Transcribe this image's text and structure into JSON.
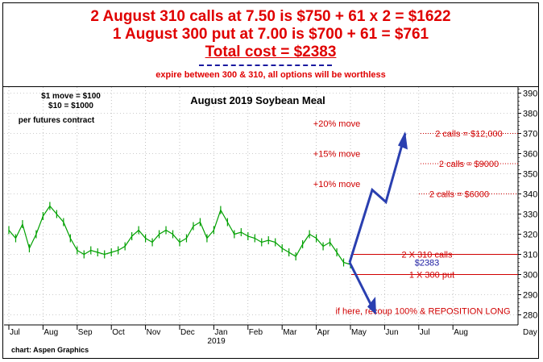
{
  "header": {
    "line1": "2 August 310 calls at 7.50 is $750 + 61 x 2 = $1622",
    "line2": "1 August 300 put at 7.00 is $700 + 61 = $761",
    "line3": "Total cost = $2383",
    "line4": "expire between 300 & 310, all options will be worthless"
  },
  "chart_data": {
    "type": "line",
    "title": "August 2019 Soybean Meal",
    "notes": [
      "$1 move = $100",
      "$10 = $1000",
      "per futures contract"
    ],
    "source": "chart: Aspen Graphics",
    "xlabel": "Day",
    "year_label": "2019",
    "x_ticks": [
      "Jul",
      "Aug",
      "Sep",
      "Oct",
      "Nov",
      "Dec",
      "Jan",
      "Feb",
      "Mar",
      "Apr",
      "May",
      "Jun",
      "Jul",
      "Aug"
    ],
    "y_ticks": [
      280,
      290,
      300,
      310,
      320,
      330,
      340,
      350,
      360,
      370,
      380,
      390
    ],
    "ylim": [
      275,
      393
    ],
    "grid": true,
    "series": [
      {
        "x": [
          0,
          0.2,
          0.4,
          0.6,
          0.8,
          1.0,
          1.2,
          1.4,
          1.6,
          1.8,
          2.0,
          2.2,
          2.4,
          2.6,
          2.8,
          3.0,
          3.2,
          3.4,
          3.6,
          3.8,
          4.0,
          4.2,
          4.4,
          4.6,
          4.8,
          5.0,
          5.2,
          5.4,
          5.6,
          5.8,
          6.0,
          6.2,
          6.4,
          6.6,
          6.8,
          7.0,
          7.2,
          7.4,
          7.6,
          7.8,
          8.0,
          8.2,
          8.4,
          8.6,
          8.8,
          9.0,
          9.2,
          9.4,
          9.6,
          9.8,
          10.0
        ],
        "values": [
          322,
          318,
          325,
          313,
          320,
          329,
          334,
          330,
          326,
          318,
          312,
          310,
          312,
          311,
          310,
          311,
          312,
          314,
          319,
          322,
          318,
          316,
          320,
          322,
          320,
          316,
          318,
          324,
          326,
          318,
          322,
          332,
          326,
          320,
          321,
          319,
          318,
          316,
          317,
          316,
          313,
          311,
          309,
          315,
          320,
          318,
          314,
          316,
          311,
          306,
          305
        ]
      }
    ],
    "scenario_lines": [
      {
        "label": "2 calls = $12,000",
        "y": 370
      },
      {
        "label": "2 calls = $9000",
        "y": 355
      },
      {
        "label": "2 calls = $6000",
        "y": 340
      },
      {
        "label": "2 X 310 calls",
        "y": 310
      },
      {
        "label": "1 X 300 put",
        "y": 300
      }
    ],
    "annotations": {
      "move_20": "+20% move",
      "move_15": "+15% move",
      "move_10": "+10% move",
      "cost": "$2383",
      "bottom": "if here, recoup 100% & REPOSITION LONG"
    },
    "colors": {
      "price": "#00a000",
      "text": "#d00000",
      "arrow": "#2a3fb0",
      "cost": "#1a1aa0"
    }
  }
}
